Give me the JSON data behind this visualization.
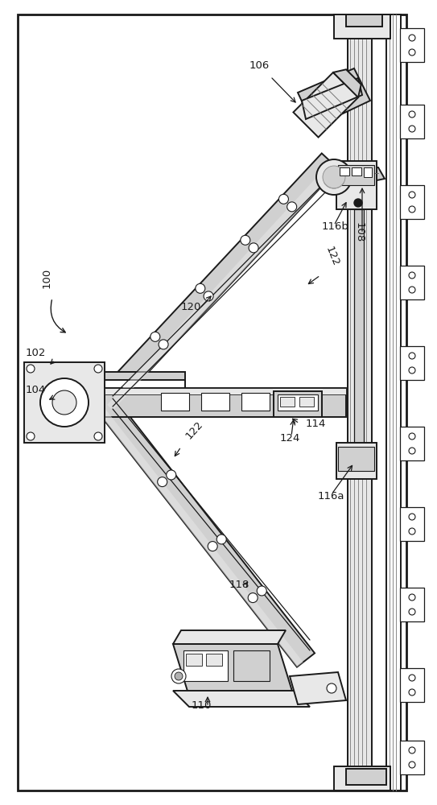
{
  "bg_color": "#ffffff",
  "lc": "#1a1a1a",
  "gray_light": "#e8e8e8",
  "gray_med": "#d0d0d0",
  "gray_dark": "#b0b0b0",
  "figsize": [
    5.43,
    10.0
  ],
  "dpi": 100
}
